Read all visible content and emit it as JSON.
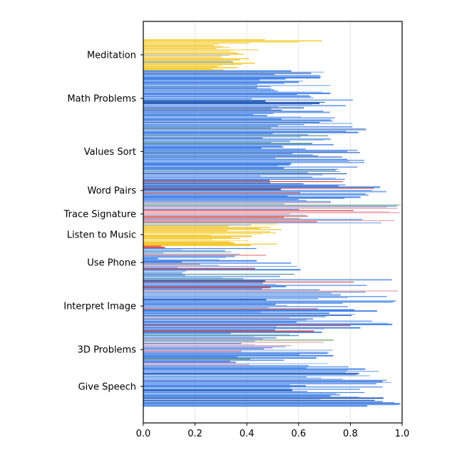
{
  "chart_data": {
    "type": "bar",
    "orientation": "horizontal",
    "xlim": [
      0,
      1
    ],
    "x_ticks": [
      "0.0",
      "0.2",
      "0.4",
      "0.6",
      "0.8",
      "1.0"
    ],
    "grid": "vertical",
    "colors": {
      "blue": "#3f7fe6",
      "blue_light": "#7aaaf0",
      "blue_dark": "#2457b0",
      "teal": "#4f8f8a",
      "yellow": "#f2c21a",
      "yellow_light": "#f5d547",
      "red": "#d9443a",
      "pink": "#e59aa6",
      "purple": "#8a6fd0",
      "green": "#5a9a56"
    },
    "categories": [
      {
        "label": "Meditation",
        "n": 28,
        "min": 0.25,
        "max": 0.45,
        "palette": "yellow",
        "extra": [
          0.47,
          0.69,
          0.6
        ]
      },
      {
        "label": "Math Problems",
        "n": 50,
        "min": 0.4,
        "max": 0.82,
        "palette": "blue"
      },
      {
        "label": "Values Sort",
        "n": 45,
        "min": 0.45,
        "max": 0.87,
        "palette": "blue_mixed"
      },
      {
        "label": "Word Pairs",
        "n": 25,
        "min": 0.45,
        "max": 1.0,
        "palette": "blue_red"
      },
      {
        "label": "Trace Signature",
        "n": 17,
        "min": 0.5,
        "max": 1.0,
        "palette": "red_mixed"
      },
      {
        "label": "Listen to Music",
        "n": 20,
        "min": 0.26,
        "max": 0.55,
        "palette": "yellow"
      },
      {
        "label": "Use Phone",
        "n": 30,
        "min": 0.05,
        "max": 0.62,
        "palette": "phone"
      },
      {
        "label": "Interpret Image",
        "n": 48,
        "min": 0.45,
        "max": 1.0,
        "palette": "blue_red"
      },
      {
        "label": "3D Problems",
        "n": 30,
        "min": 0.3,
        "max": 0.75,
        "palette": "mixed_pink"
      },
      {
        "label": "Give Speech",
        "n": 36,
        "min": 0.55,
        "max": 1.0,
        "palette": "blue"
      }
    ]
  }
}
